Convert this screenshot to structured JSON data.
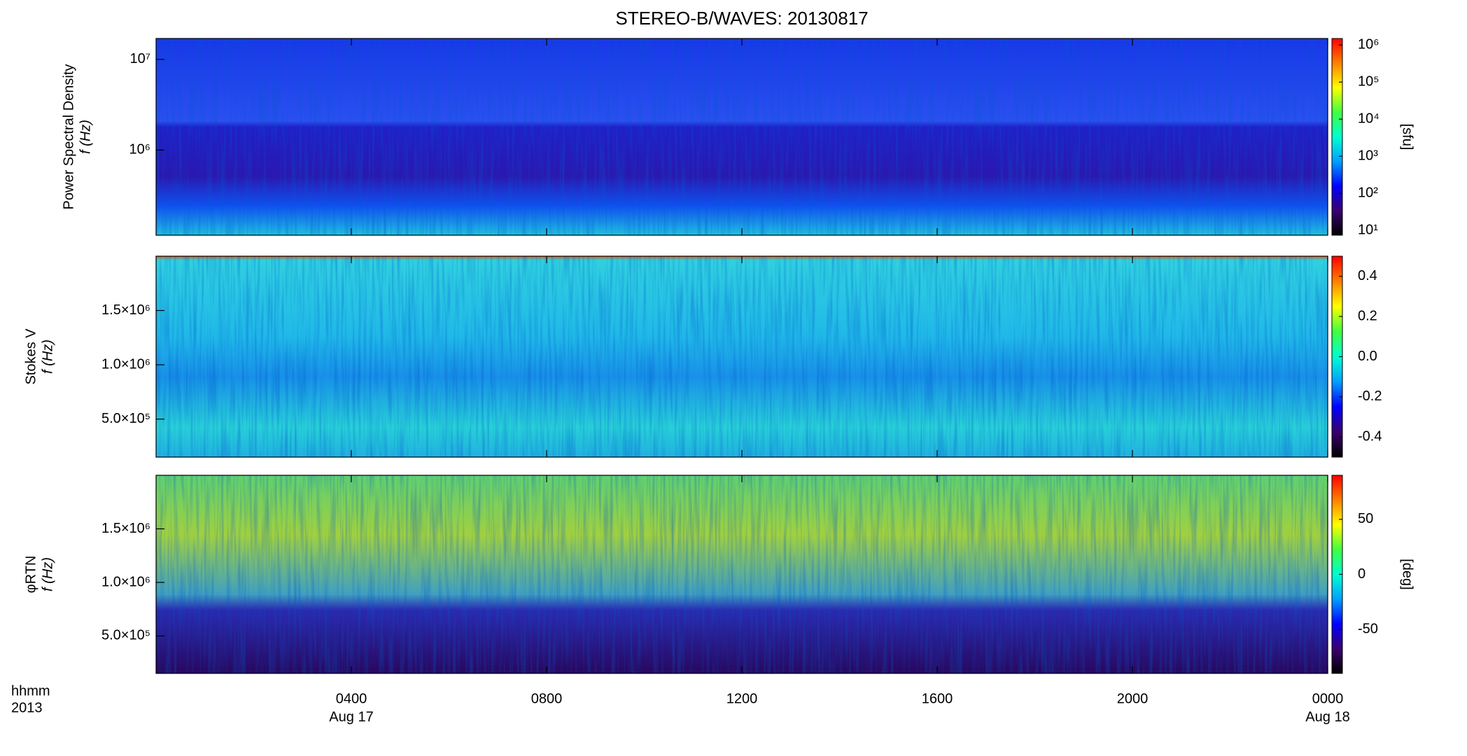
{
  "title": "STEREO-B/WAVES: 20130817",
  "x_axis": {
    "label": "hhmm",
    "year_label": "2013",
    "xlim": [
      0,
      24
    ],
    "xticks": [
      {
        "value": 4,
        "label": "0400"
      },
      {
        "value": 8,
        "label": "0800"
      },
      {
        "value": 12,
        "label": "1200"
      },
      {
        "value": 16,
        "label": "1600"
      },
      {
        "value": 20,
        "label": "2000"
      },
      {
        "value": 24,
        "label": "0000"
      }
    ],
    "date_labels": [
      {
        "value": 4,
        "label": "Aug 17"
      },
      {
        "value": 24,
        "label": "Aug 18"
      }
    ]
  },
  "colormap": [
    "#000000",
    "#3a0070",
    "#0000ff",
    "#00a0ff",
    "#00ffd0",
    "#40ff40",
    "#ffff00",
    "#ff8000",
    "#ff0000"
  ],
  "chart_data": [
    {
      "type": "spectrogram",
      "ylabel": "Power Spectral Density",
      "ylabel2": "f (Hz)",
      "ylog": true,
      "ylim": [
        115000,
        17000000
      ],
      "yticks": [
        {
          "value": 1000000,
          "label": "10⁶"
        },
        {
          "value": 10000000,
          "label": "10⁷"
        }
      ],
      "colorbar": {
        "label": "[sfu]",
        "log": true,
        "lim": [
          7.4,
          1500000
        ],
        "ticks": [
          {
            "value": 10,
            "label": "10¹"
          },
          {
            "value": 100,
            "label": "10²"
          },
          {
            "value": 1000,
            "label": "10³"
          },
          {
            "value": 10000,
            "label": "10⁴"
          },
          {
            "value": 100000,
            "label": "10⁵"
          },
          {
            "value": 1000000,
            "label": "10⁶"
          }
        ]
      }
    },
    {
      "type": "spectrogram",
      "ylabel": "Stokes V",
      "ylabel2": "f (Hz)",
      "ylog": false,
      "ylim": [
        150000,
        2000000
      ],
      "yticks": [
        {
          "value": 500000,
          "label": "5.0×10⁵"
        },
        {
          "value": 1000000,
          "label": "1.0×10⁶"
        },
        {
          "value": 1500000,
          "label": "1.5×10⁶"
        }
      ],
      "colorbar": {
        "log": false,
        "lim": [
          -0.5,
          0.5
        ],
        "ticks": [
          -0.4,
          -0.2,
          {
            "value": 0,
            "label": "0.0"
          },
          0.2,
          0.4
        ]
      }
    },
    {
      "type": "spectrogram",
      "ylabel": "φRTN",
      "ylabel2": "f (Hz)",
      "ylog": false,
      "ylim": [
        150000,
        2000000
      ],
      "yticks": [
        {
          "value": 500000,
          "label": "5.0×10⁵"
        },
        {
          "value": 1000000,
          "label": "1.0×10⁶"
        },
        {
          "value": 1500000,
          "label": "1.5×10⁶"
        }
      ],
      "colorbar": {
        "label": "[deg]",
        "log": false,
        "lim": [
          -90,
          90
        ],
        "ticks": [
          -50,
          0,
          50
        ]
      }
    }
  ]
}
